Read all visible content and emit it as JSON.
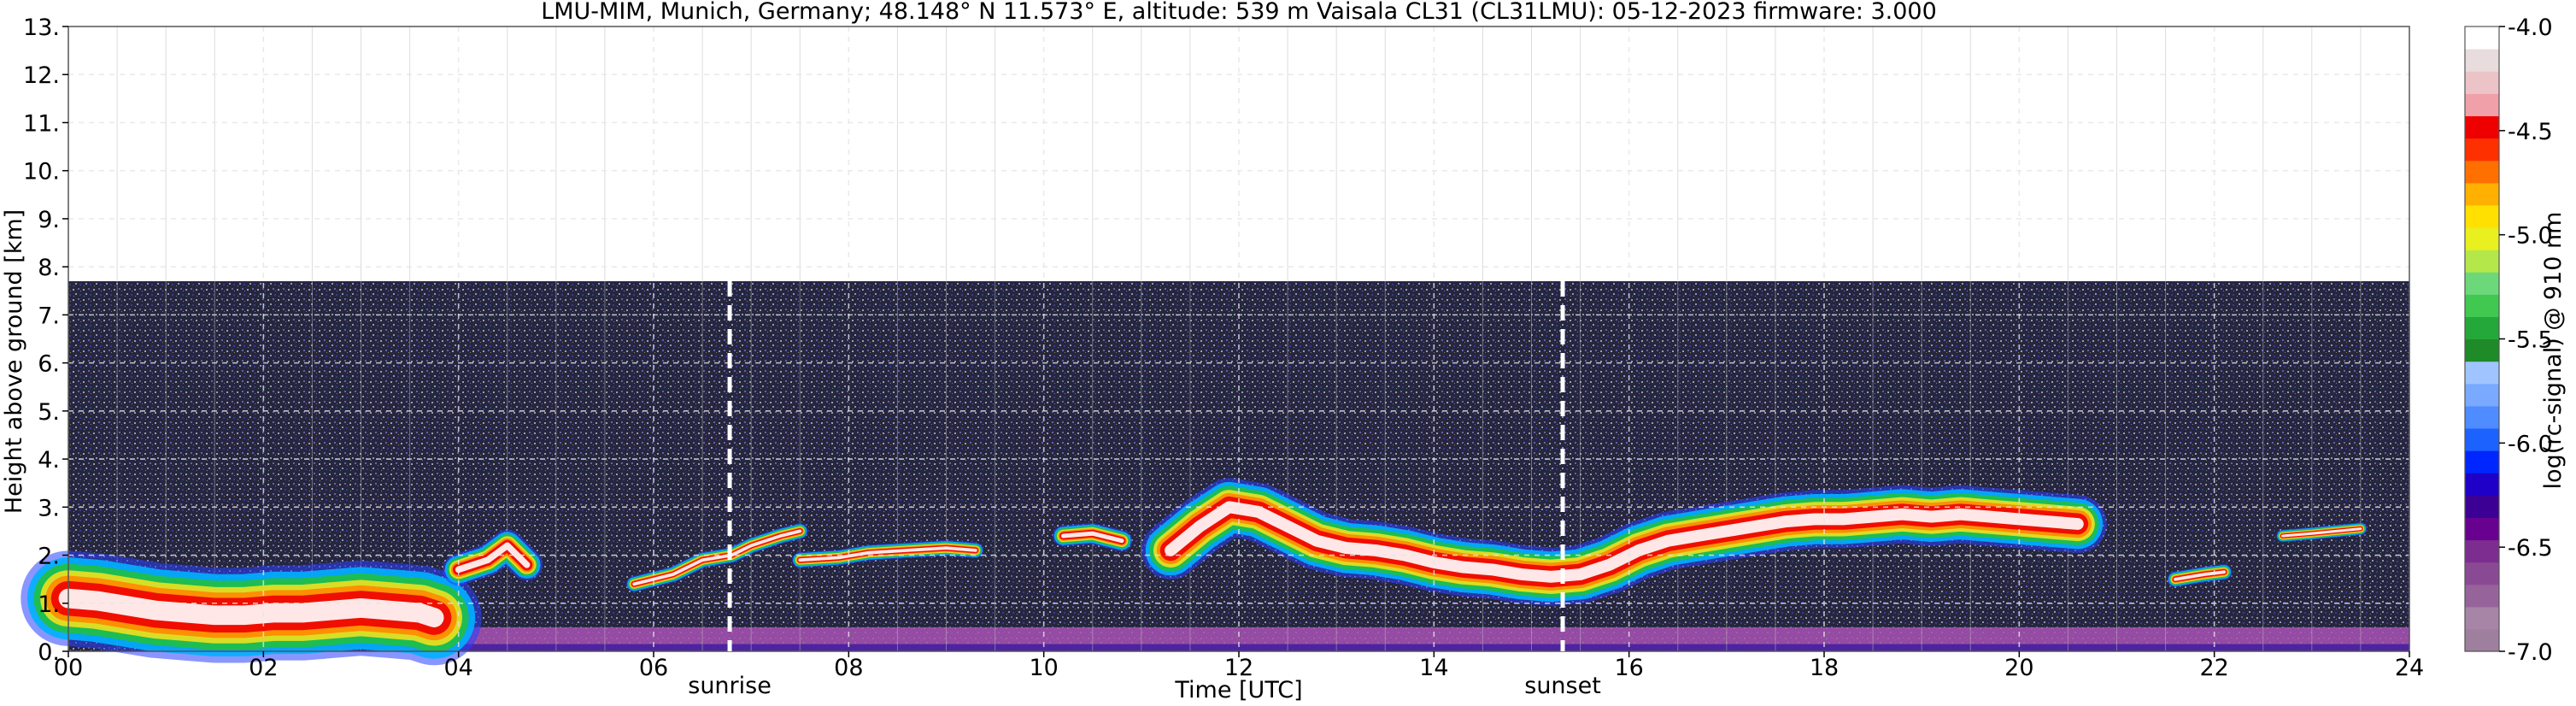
{
  "chart_data": {
    "type": "heatmap",
    "title": "LMU-MIM, Munich, Germany; 48.148° N 11.573° E, altitude: 539 m    Vaisala CL31 (CL31LMU): 05-12-2023    firmware: 3.000",
    "xlabel": "Time [UTC]",
    "ylabel": "Height above ground [km]",
    "colorbar_label": "log(rc-signal) @ 910 nm",
    "xlim": [
      0,
      24
    ],
    "ylim": [
      0,
      13
    ],
    "x_ticks": [
      0,
      2,
      4,
      6,
      8,
      10,
      12,
      14,
      16,
      18,
      20,
      22,
      24
    ],
    "x_tick_labels": [
      "00",
      "02",
      "04",
      "06",
      "08",
      "10",
      "12",
      "14",
      "16",
      "18",
      "20",
      "22",
      "24"
    ],
    "y_ticks": [
      0,
      1,
      2,
      3,
      4,
      5,
      6,
      7,
      8,
      9,
      10,
      11,
      12,
      13
    ],
    "y_tick_labels": [
      "0.",
      "1.",
      "2.",
      "3.",
      "4.",
      "5.",
      "6.",
      "7.",
      "8.",
      "9.",
      "10.",
      "11.",
      "12.",
      "13."
    ],
    "grid": true,
    "data_top_km": 7.7,
    "colorbar_range": [
      -7.0,
      -4.0
    ],
    "colorbar_ticks": [
      -7.0,
      -6.5,
      -6.0,
      -5.5,
      -5.0,
      -4.5,
      -4.0
    ],
    "colorbar_tick_labels": [
      "-7.0",
      "-6.5",
      "-6.0",
      "-5.5",
      "-5.0",
      "-4.5",
      "-4.0"
    ],
    "colorbar_colors": [
      "#9e809e",
      "#a785a7",
      "#96649b",
      "#8a4a93",
      "#7c2d8f",
      "#680090",
      "#3c0094",
      "#1e00c8",
      "#0026ff",
      "#1c62ff",
      "#4e8cff",
      "#7aaaff",
      "#a0c4ff",
      "#1e8a28",
      "#24a83a",
      "#40c850",
      "#6cd87a",
      "#b4e84a",
      "#e8f020",
      "#ffe000",
      "#ffb000",
      "#ff7000",
      "#ff3000",
      "#ee0000",
      "#f0a0a8",
      "#ecc4c8",
      "#e8dcdc",
      "#ffffff"
    ],
    "annotations": [
      {
        "text": "sunrise",
        "x": 6.78
      },
      {
        "text": "sunset",
        "x": 15.32
      }
    ],
    "background_noise_color": "#2a2a4a",
    "surface_layer_color": "#a852b4",
    "cloud_core_color": "#ffffff",
    "layers": [
      {
        "name": "residual-layer",
        "points": [
          [
            0.0,
            1.1
          ],
          [
            0.3,
            1.05
          ],
          [
            0.6,
            0.95
          ],
          [
            0.9,
            0.85
          ],
          [
            1.2,
            0.8
          ],
          [
            1.5,
            0.75
          ],
          [
            1.8,
            0.75
          ],
          [
            2.1,
            0.8
          ],
          [
            2.4,
            0.8
          ],
          [
            2.7,
            0.85
          ],
          [
            3.0,
            0.9
          ],
          [
            3.3,
            0.85
          ],
          [
            3.6,
            0.8
          ],
          [
            3.75,
            0.7
          ]
        ],
        "thickness": 0.9
      },
      {
        "name": "mid-layer-morning",
        "points": [
          [
            4.0,
            1.7
          ],
          [
            4.3,
            1.9
          ],
          [
            4.5,
            2.2
          ],
          [
            4.7,
            1.8
          ]
        ],
        "thickness": 0.3
      },
      {
        "name": "thin-layer-dawn",
        "points": [
          [
            5.8,
            1.4
          ],
          [
            6.2,
            1.6
          ],
          [
            6.5,
            1.9
          ],
          [
            6.8,
            2.0
          ],
          [
            7.0,
            2.2
          ],
          [
            7.3,
            2.4
          ],
          [
            7.5,
            2.5
          ]
        ],
        "thickness": 0.15
      },
      {
        "name": "thin-layer-morning",
        "points": [
          [
            7.5,
            1.9
          ],
          [
            7.9,
            1.95
          ],
          [
            8.2,
            2.05
          ],
          [
            8.6,
            2.1
          ],
          [
            9.0,
            2.15
          ],
          [
            9.3,
            2.1
          ]
        ],
        "thickness": 0.15
      },
      {
        "name": "thin-layer-late-morning",
        "points": [
          [
            10.2,
            2.4
          ],
          [
            10.5,
            2.45
          ],
          [
            10.8,
            2.3
          ]
        ],
        "thickness": 0.2
      },
      {
        "name": "main-cloud-layer",
        "points": [
          [
            11.3,
            2.1
          ],
          [
            11.6,
            2.6
          ],
          [
            11.9,
            3.0
          ],
          [
            12.2,
            2.9
          ],
          [
            12.5,
            2.6
          ],
          [
            12.8,
            2.3
          ],
          [
            13.1,
            2.15
          ],
          [
            13.4,
            2.1
          ],
          [
            13.7,
            2.0
          ],
          [
            14.0,
            1.85
          ],
          [
            14.3,
            1.75
          ],
          [
            14.6,
            1.7
          ],
          [
            14.9,
            1.6
          ],
          [
            15.2,
            1.55
          ],
          [
            15.5,
            1.6
          ],
          [
            15.8,
            1.8
          ],
          [
            16.1,
            2.1
          ],
          [
            16.4,
            2.3
          ],
          [
            16.7,
            2.4
          ],
          [
            17.0,
            2.5
          ],
          [
            17.3,
            2.6
          ],
          [
            17.6,
            2.7
          ],
          [
            17.9,
            2.75
          ],
          [
            18.2,
            2.75
          ],
          [
            18.5,
            2.8
          ],
          [
            18.8,
            2.85
          ],
          [
            19.1,
            2.8
          ],
          [
            19.4,
            2.85
          ],
          [
            19.7,
            2.8
          ],
          [
            20.0,
            2.75
          ],
          [
            20.3,
            2.7
          ],
          [
            20.6,
            2.65
          ]
        ],
        "thickness": 0.55
      },
      {
        "name": "isolated-layer-evening",
        "points": [
          [
            21.6,
            1.5
          ],
          [
            21.9,
            1.6
          ],
          [
            22.1,
            1.65
          ]
        ],
        "thickness": 0.15
      },
      {
        "name": "isolated-layer-night",
        "points": [
          [
            22.7,
            2.4
          ],
          [
            23.0,
            2.45
          ],
          [
            23.5,
            2.55
          ]
        ],
        "thickness": 0.12
      }
    ]
  }
}
